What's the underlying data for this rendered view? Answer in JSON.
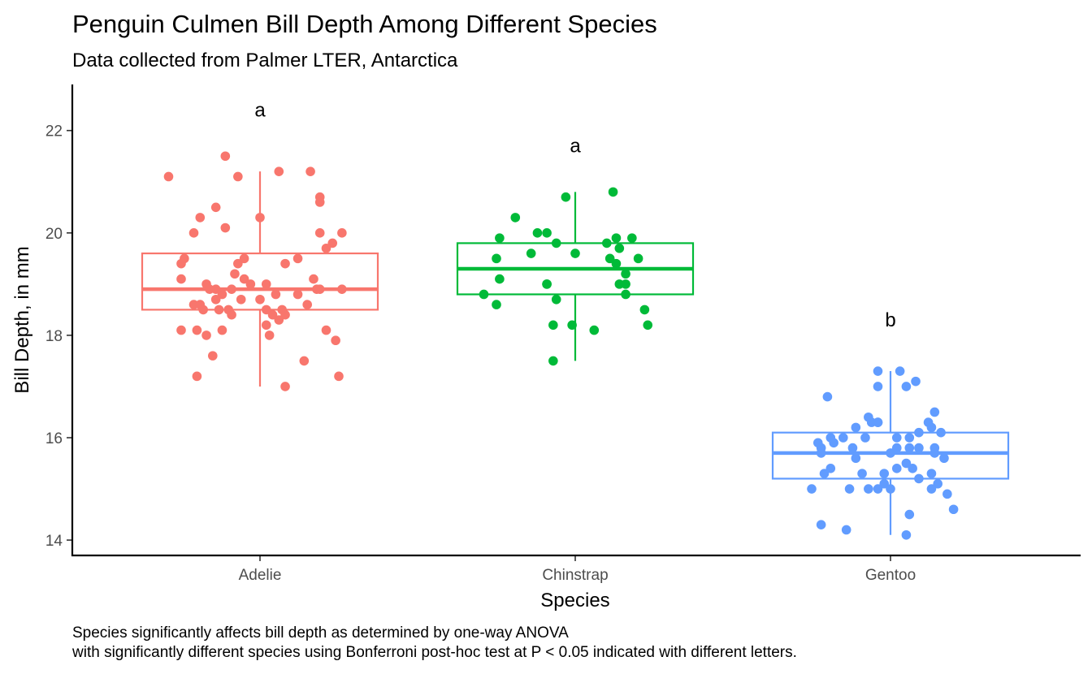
{
  "chart_data": {
    "type": "box",
    "title": "Penguin Culmen Bill Depth Among Different Species",
    "subtitle": "Data collected from Palmer LTER, Antarctica",
    "xlabel": "Species",
    "ylabel": "Bill Depth, in mm",
    "caption_lines": [
      "Species significantly affects bill depth as determined by one-way ANOVA",
      "with significantly different species using Bonferroni post-hoc test at P < 0.05 indicated with different letters."
    ],
    "categories": [
      "Adelie",
      "Chinstrap",
      "Gentoo"
    ],
    "ylim": [
      13.7,
      22.9
    ],
    "yticks": [
      14,
      16,
      18,
      20,
      22
    ],
    "grid": false,
    "legend": "none",
    "series": [
      {
        "category": "Adelie",
        "color": "#F8766D",
        "box": {
          "min": 17.0,
          "q1": 18.5,
          "median": 18.9,
          "q3": 19.6,
          "max": 21.2
        },
        "letter": "a",
        "letter_y": 22.4,
        "points": [
          {
            "x": -0.29,
            "y": 21.1
          },
          {
            "x": -0.11,
            "y": 21.5
          },
          {
            "x": -0.07,
            "y": 21.1
          },
          {
            "x": 0.06,
            "y": 21.2
          },
          {
            "x": 0.16,
            "y": 21.2
          },
          {
            "x": 0.19,
            "y": 20.7
          },
          {
            "x": 0.19,
            "y": 20.6
          },
          {
            "x": -0.14,
            "y": 20.5
          },
          {
            "x": -0.19,
            "y": 20.3
          },
          {
            "x": 0.0,
            "y": 20.3
          },
          {
            "x": -0.11,
            "y": 20.1
          },
          {
            "x": 0.19,
            "y": 20.0
          },
          {
            "x": 0.26,
            "y": 20.0
          },
          {
            "x": -0.21,
            "y": 20.0
          },
          {
            "x": 0.23,
            "y": 19.8
          },
          {
            "x": 0.21,
            "y": 19.7
          },
          {
            "x": -0.24,
            "y": 19.5
          },
          {
            "x": -0.05,
            "y": 19.5
          },
          {
            "x": 0.12,
            "y": 19.5
          },
          {
            "x": -0.07,
            "y": 19.4
          },
          {
            "x": -0.25,
            "y": 19.4
          },
          {
            "x": 0.08,
            "y": 19.4
          },
          {
            "x": -0.08,
            "y": 19.2
          },
          {
            "x": -0.05,
            "y": 19.1
          },
          {
            "x": 0.17,
            "y": 19.1
          },
          {
            "x": -0.25,
            "y": 19.1
          },
          {
            "x": -0.17,
            "y": 19.0
          },
          {
            "x": 0.02,
            "y": 19.0
          },
          {
            "x": -0.03,
            "y": 19.0
          },
          {
            "x": -0.14,
            "y": 18.9
          },
          {
            "x": -0.16,
            "y": 18.9
          },
          {
            "x": -0.09,
            "y": 18.9
          },
          {
            "x": 0.18,
            "y": 18.9
          },
          {
            "x": 0.19,
            "y": 18.9
          },
          {
            "x": 0.26,
            "y": 18.9
          },
          {
            "x": -0.12,
            "y": 18.8
          },
          {
            "x": 0.05,
            "y": 18.8
          },
          {
            "x": 0.12,
            "y": 18.8
          },
          {
            "x": -0.14,
            "y": 18.7
          },
          {
            "x": -0.06,
            "y": 18.7
          },
          {
            "x": 0.0,
            "y": 18.7
          },
          {
            "x": -0.21,
            "y": 18.6
          },
          {
            "x": -0.19,
            "y": 18.6
          },
          {
            "x": 0.15,
            "y": 18.6
          },
          {
            "x": -0.18,
            "y": 18.5
          },
          {
            "x": -0.13,
            "y": 18.5
          },
          {
            "x": -0.1,
            "y": 18.5
          },
          {
            "x": 0.02,
            "y": 18.5
          },
          {
            "x": 0.07,
            "y": 18.5
          },
          {
            "x": -0.09,
            "y": 18.4
          },
          {
            "x": 0.04,
            "y": 18.4
          },
          {
            "x": 0.08,
            "y": 18.4
          },
          {
            "x": 0.06,
            "y": 18.3
          },
          {
            "x": 0.02,
            "y": 18.2
          },
          {
            "x": -0.25,
            "y": 18.1
          },
          {
            "x": -0.2,
            "y": 18.1
          },
          {
            "x": -0.12,
            "y": 18.1
          },
          {
            "x": 0.21,
            "y": 18.1
          },
          {
            "x": -0.17,
            "y": 18.0
          },
          {
            "x": 0.03,
            "y": 18.0
          },
          {
            "x": 0.24,
            "y": 17.9
          },
          {
            "x": -0.15,
            "y": 17.6
          },
          {
            "x": 0.14,
            "y": 17.5
          },
          {
            "x": -0.2,
            "y": 17.2
          },
          {
            "x": 0.25,
            "y": 17.2
          },
          {
            "x": 0.08,
            "y": 17.0
          }
        ]
      },
      {
        "category": "Chinstrap",
        "color": "#00BA38",
        "box": {
          "min": 17.5,
          "q1": 18.8,
          "median": 19.3,
          "q3": 19.8,
          "max": 20.8
        },
        "letter": "a",
        "letter_y": 21.7,
        "points": [
          {
            "x": 0.12,
            "y": 20.8
          },
          {
            "x": -0.03,
            "y": 20.7
          },
          {
            "x": -0.19,
            "y": 20.3
          },
          {
            "x": -0.09,
            "y": 20.0
          },
          {
            "x": -0.12,
            "y": 20.0
          },
          {
            "x": -0.24,
            "y": 19.9
          },
          {
            "x": 0.13,
            "y": 19.9
          },
          {
            "x": 0.18,
            "y": 19.9
          },
          {
            "x": -0.06,
            "y": 19.8
          },
          {
            "x": 0.1,
            "y": 19.8
          },
          {
            "x": 0.14,
            "y": 19.7
          },
          {
            "x": -0.14,
            "y": 19.6
          },
          {
            "x": 0.0,
            "y": 19.6
          },
          {
            "x": -0.25,
            "y": 19.5
          },
          {
            "x": 0.11,
            "y": 19.5
          },
          {
            "x": 0.2,
            "y": 19.5
          },
          {
            "x": 0.13,
            "y": 19.4
          },
          {
            "x": 0.16,
            "y": 19.2
          },
          {
            "x": -0.24,
            "y": 19.1
          },
          {
            "x": -0.09,
            "y": 19.0
          },
          {
            "x": -0.09,
            "y": 19.0
          },
          {
            "x": 0.14,
            "y": 19.0
          },
          {
            "x": 0.16,
            "y": 19.0
          },
          {
            "x": -0.29,
            "y": 18.8
          },
          {
            "x": 0.16,
            "y": 18.8
          },
          {
            "x": -0.06,
            "y": 18.7
          },
          {
            "x": -0.25,
            "y": 18.6
          },
          {
            "x": 0.22,
            "y": 18.5
          },
          {
            "x": -0.07,
            "y": 18.2
          },
          {
            "x": -0.01,
            "y": 18.2
          },
          {
            "x": 0.23,
            "y": 18.2
          },
          {
            "x": 0.06,
            "y": 18.1
          },
          {
            "x": -0.07,
            "y": 17.5
          }
        ]
      },
      {
        "category": "Gentoo",
        "color": "#619CFF",
        "box": {
          "min": 14.1,
          "q1": 15.2,
          "median": 15.7,
          "q3": 16.1,
          "max": 17.3
        },
        "letter": "b",
        "letter_y": 18.3,
        "points": [
          {
            "x": 0.03,
            "y": 17.3
          },
          {
            "x": -0.04,
            "y": 17.3
          },
          {
            "x": 0.08,
            "y": 17.1
          },
          {
            "x": 0.05,
            "y": 17.0
          },
          {
            "x": -0.04,
            "y": 17.0
          },
          {
            "x": -0.2,
            "y": 16.8
          },
          {
            "x": 0.14,
            "y": 16.5
          },
          {
            "x": -0.07,
            "y": 16.4
          },
          {
            "x": -0.04,
            "y": 16.3
          },
          {
            "x": -0.06,
            "y": 16.3
          },
          {
            "x": -0.04,
            "y": 16.3
          },
          {
            "x": 0.12,
            "y": 16.3
          },
          {
            "x": 0.13,
            "y": 16.2
          },
          {
            "x": -0.11,
            "y": 16.2
          },
          {
            "x": 0.09,
            "y": 16.1
          },
          {
            "x": 0.16,
            "y": 16.1
          },
          {
            "x": -0.19,
            "y": 16.0
          },
          {
            "x": -0.15,
            "y": 16.0
          },
          {
            "x": -0.08,
            "y": 16.0
          },
          {
            "x": 0.02,
            "y": 16.0
          },
          {
            "x": 0.06,
            "y": 16.0
          },
          {
            "x": -0.23,
            "y": 15.9
          },
          {
            "x": -0.18,
            "y": 15.9
          },
          {
            "x": 0.02,
            "y": 15.8
          },
          {
            "x": 0.14,
            "y": 15.8
          },
          {
            "x": -0.22,
            "y": 15.8
          },
          {
            "x": -0.12,
            "y": 15.8
          },
          {
            "x": 0.06,
            "y": 15.8
          },
          {
            "x": 0.09,
            "y": 15.8
          },
          {
            "x": -0.22,
            "y": 15.7
          },
          {
            "x": 0.0,
            "y": 15.7
          },
          {
            "x": 0.14,
            "y": 15.7
          },
          {
            "x": -0.11,
            "y": 15.6
          },
          {
            "x": 0.17,
            "y": 15.6
          },
          {
            "x": 0.05,
            "y": 15.5
          },
          {
            "x": -0.19,
            "y": 15.4
          },
          {
            "x": 0.02,
            "y": 15.4
          },
          {
            "x": 0.07,
            "y": 15.4
          },
          {
            "x": -0.02,
            "y": 15.3
          },
          {
            "x": -0.09,
            "y": 15.3
          },
          {
            "x": 0.13,
            "y": 15.3
          },
          {
            "x": -0.21,
            "y": 15.3
          },
          {
            "x": 0.09,
            "y": 15.2
          },
          {
            "x": -0.02,
            "y": 15.1
          },
          {
            "x": 0.15,
            "y": 15.1
          },
          {
            "x": -0.07,
            "y": 15.0
          },
          {
            "x": -0.04,
            "y": 15.0
          },
          {
            "x": 0.0,
            "y": 15.0
          },
          {
            "x": -0.13,
            "y": 15.0
          },
          {
            "x": -0.25,
            "y": 15.0
          },
          {
            "x": 0.13,
            "y": 15.0
          },
          {
            "x": 0.18,
            "y": 14.9
          },
          {
            "x": 0.2,
            "y": 14.6
          },
          {
            "x": 0.06,
            "y": 14.5
          },
          {
            "x": -0.22,
            "y": 14.3
          },
          {
            "x": -0.14,
            "y": 14.2
          },
          {
            "x": 0.05,
            "y": 14.1
          }
        ]
      }
    ]
  }
}
